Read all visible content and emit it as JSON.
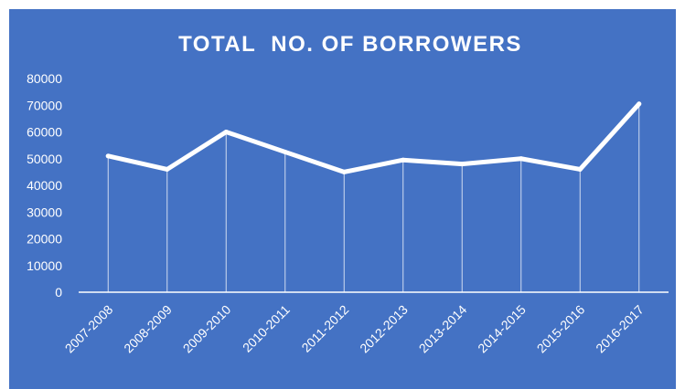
{
  "chart_data": {
    "type": "line",
    "title": "TOTAL  NO. OF BORROWERS",
    "xlabel": "",
    "ylabel": "",
    "categories": [
      "2007-2008",
      "2008-2009",
      "2009-2010",
      "2010-2011",
      "2011-2012",
      "2012-2013",
      "2013-2014",
      "2014-2015",
      "2015-2016",
      "2016-2017"
    ],
    "series": [
      {
        "values": [
          51000,
          46000,
          60000,
          52500,
          45000,
          49500,
          48000,
          50000,
          46000,
          70500
        ]
      }
    ],
    "ylim": [
      0,
      80000
    ],
    "yticks": [
      "0",
      "10000",
      "20000",
      "30000",
      "40000",
      "50000",
      "60000",
      "70000",
      "80000"
    ],
    "drop_lines": true,
    "grid": false,
    "legend": "none",
    "colors": {
      "background": "#4472c4",
      "line": "#ffffff",
      "text": "#ffffff"
    }
  }
}
